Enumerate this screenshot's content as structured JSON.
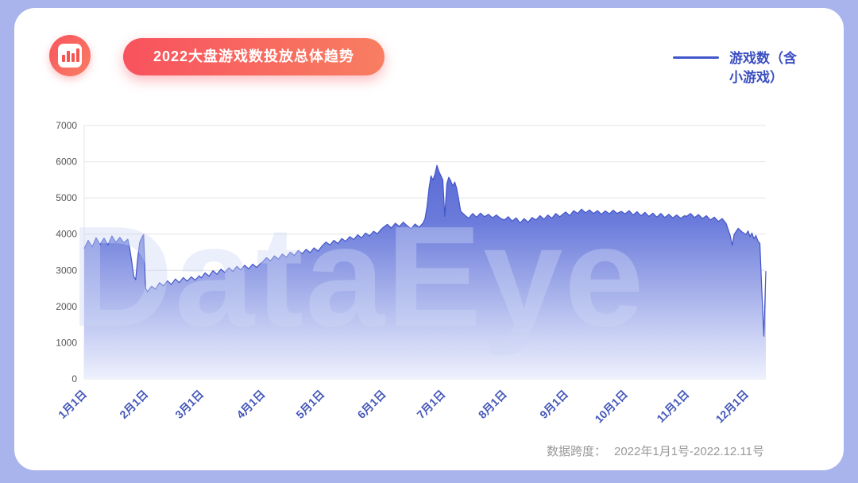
{
  "header": {
    "title": "2022大盘游戏数投放总体趋势",
    "icon": "bar-chart-icon"
  },
  "legend": {
    "label": "游戏数（含小游戏）"
  },
  "footer": {
    "prefix": "数据跨度：",
    "value": "2022年1月1号-2022.12.11号"
  },
  "watermark": "DataEye",
  "colors": {
    "background": "#a9b3ec",
    "card": "#ffffff",
    "accent_red_start": "#f8525e",
    "accent_red_end": "#f87e61",
    "series_line": "#4356c9",
    "series_fill_top": "#4f61d0",
    "series_fill_bottom": "#eef1fd",
    "x_label": "#4356b8",
    "y_label": "#555555",
    "gridline": "#e4e4e4",
    "footer_text": "#999999",
    "legend_text": "#3a4ec0"
  },
  "chart_data": {
    "type": "area",
    "title": "2022大盘游戏数投放总体趋势",
    "xlabel": "",
    "ylabel": "",
    "ylim": [
      0,
      7000
    ],
    "y_ticks": [
      0,
      1000,
      2000,
      3000,
      4000,
      5000,
      6000,
      7000
    ],
    "grid": "horizontal",
    "legend_position": "top-right",
    "date_span": "2022年1月1号-2022.12.11号",
    "x_range_days": [
      0,
      344
    ],
    "x_ticks": [
      {
        "label": "1月1日",
        "day": 0
      },
      {
        "label": "2月1日",
        "day": 31
      },
      {
        "label": "3月1日",
        "day": 59
      },
      {
        "label": "4月1日",
        "day": 90
      },
      {
        "label": "5月1日",
        "day": 120
      },
      {
        "label": "6月1日",
        "day": 151
      },
      {
        "label": "7月1日",
        "day": 181
      },
      {
        "label": "8月1日",
        "day": 212
      },
      {
        "label": "9月1日",
        "day": 243
      },
      {
        "label": "10月1日",
        "day": 273
      },
      {
        "label": "11月1日",
        "day": 304
      },
      {
        "label": "12月1日",
        "day": 334
      }
    ],
    "series": [
      {
        "name": "游戏数（含小游戏）",
        "x_unit": "day_of_2022",
        "points": [
          [
            0,
            3600
          ],
          [
            2,
            3830
          ],
          [
            4,
            3650
          ],
          [
            6,
            3900
          ],
          [
            8,
            3710
          ],
          [
            10,
            3890
          ],
          [
            12,
            3700
          ],
          [
            14,
            3950
          ],
          [
            16,
            3770
          ],
          [
            18,
            3910
          ],
          [
            20,
            3760
          ],
          [
            22,
            3860
          ],
          [
            23,
            3590
          ],
          [
            24,
            3230
          ],
          [
            25,
            2830
          ],
          [
            26,
            2740
          ],
          [
            27,
            3330
          ],
          [
            28,
            3770
          ],
          [
            29,
            3900
          ],
          [
            30,
            3990
          ],
          [
            31,
            2500
          ],
          [
            32,
            2410
          ],
          [
            34,
            2560
          ],
          [
            36,
            2480
          ],
          [
            38,
            2660
          ],
          [
            40,
            2570
          ],
          [
            42,
            2710
          ],
          [
            44,
            2610
          ],
          [
            46,
            2760
          ],
          [
            48,
            2660
          ],
          [
            50,
            2800
          ],
          [
            52,
            2700
          ],
          [
            54,
            2820
          ],
          [
            56,
            2730
          ],
          [
            58,
            2850
          ],
          [
            59,
            2790
          ],
          [
            61,
            2930
          ],
          [
            63,
            2840
          ],
          [
            65,
            2990
          ],
          [
            67,
            2890
          ],
          [
            69,
            3030
          ],
          [
            71,
            2940
          ],
          [
            73,
            3070
          ],
          [
            75,
            2970
          ],
          [
            77,
            3110
          ],
          [
            79,
            3010
          ],
          [
            81,
            3140
          ],
          [
            83,
            3040
          ],
          [
            85,
            3170
          ],
          [
            87,
            3080
          ],
          [
            89,
            3190
          ],
          [
            90,
            3230
          ],
          [
            92,
            3350
          ],
          [
            94,
            3260
          ],
          [
            96,
            3400
          ],
          [
            98,
            3310
          ],
          [
            100,
            3450
          ],
          [
            102,
            3360
          ],
          [
            104,
            3500
          ],
          [
            106,
            3410
          ],
          [
            108,
            3550
          ],
          [
            110,
            3460
          ],
          [
            112,
            3580
          ],
          [
            114,
            3490
          ],
          [
            116,
            3620
          ],
          [
            118,
            3530
          ],
          [
            120,
            3670
          ],
          [
            122,
            3780
          ],
          [
            124,
            3700
          ],
          [
            126,
            3830
          ],
          [
            128,
            3740
          ],
          [
            130,
            3880
          ],
          [
            132,
            3800
          ],
          [
            134,
            3930
          ],
          [
            136,
            3850
          ],
          [
            138,
            3980
          ],
          [
            140,
            3900
          ],
          [
            142,
            4030
          ],
          [
            144,
            3950
          ],
          [
            146,
            4080
          ],
          [
            148,
            4010
          ],
          [
            150,
            4140
          ],
          [
            151,
            4190
          ],
          [
            153,
            4270
          ],
          [
            155,
            4170
          ],
          [
            157,
            4300
          ],
          [
            159,
            4210
          ],
          [
            161,
            4330
          ],
          [
            163,
            4230
          ],
          [
            165,
            4150
          ],
          [
            167,
            4280
          ],
          [
            169,
            4190
          ],
          [
            171,
            4310
          ],
          [
            172,
            4430
          ],
          [
            173,
            4760
          ],
          [
            174,
            5260
          ],
          [
            175,
            5610
          ],
          [
            176,
            5490
          ],
          [
            177,
            5660
          ],
          [
            178,
            5900
          ],
          [
            179,
            5730
          ],
          [
            180,
            5610
          ],
          [
            181,
            5500
          ],
          [
            182,
            4490
          ],
          [
            183,
            5390
          ],
          [
            184,
            5570
          ],
          [
            185,
            5470
          ],
          [
            186,
            5330
          ],
          [
            187,
            5440
          ],
          [
            188,
            5260
          ],
          [
            189,
            4960
          ],
          [
            190,
            4630
          ],
          [
            192,
            4530
          ],
          [
            194,
            4440
          ],
          [
            196,
            4570
          ],
          [
            198,
            4470
          ],
          [
            200,
            4580
          ],
          [
            202,
            4480
          ],
          [
            204,
            4550
          ],
          [
            206,
            4450
          ],
          [
            208,
            4530
          ],
          [
            210,
            4440
          ],
          [
            212,
            4390
          ],
          [
            214,
            4480
          ],
          [
            216,
            4360
          ],
          [
            218,
            4450
          ],
          [
            220,
            4310
          ],
          [
            222,
            4430
          ],
          [
            224,
            4330
          ],
          [
            226,
            4460
          ],
          [
            228,
            4390
          ],
          [
            230,
            4510
          ],
          [
            232,
            4410
          ],
          [
            234,
            4530
          ],
          [
            236,
            4440
          ],
          [
            238,
            4570
          ],
          [
            240,
            4480
          ],
          [
            242,
            4570
          ],
          [
            243,
            4610
          ],
          [
            245,
            4510
          ],
          [
            247,
            4650
          ],
          [
            249,
            4570
          ],
          [
            251,
            4690
          ],
          [
            253,
            4590
          ],
          [
            255,
            4670
          ],
          [
            257,
            4570
          ],
          [
            259,
            4650
          ],
          [
            261,
            4550
          ],
          [
            263,
            4640
          ],
          [
            265,
            4560
          ],
          [
            267,
            4660
          ],
          [
            269,
            4570
          ],
          [
            271,
            4630
          ],
          [
            273,
            4560
          ],
          [
            275,
            4650
          ],
          [
            277,
            4530
          ],
          [
            279,
            4620
          ],
          [
            281,
            4510
          ],
          [
            283,
            4600
          ],
          [
            285,
            4490
          ],
          [
            287,
            4580
          ],
          [
            289,
            4470
          ],
          [
            291,
            4570
          ],
          [
            293,
            4460
          ],
          [
            295,
            4550
          ],
          [
            297,
            4450
          ],
          [
            299,
            4530
          ],
          [
            301,
            4440
          ],
          [
            303,
            4510
          ],
          [
            304,
            4490
          ],
          [
            306,
            4570
          ],
          [
            308,
            4460
          ],
          [
            310,
            4540
          ],
          [
            312,
            4430
          ],
          [
            314,
            4510
          ],
          [
            316,
            4390
          ],
          [
            318,
            4470
          ],
          [
            320,
            4350
          ],
          [
            322,
            4430
          ],
          [
            324,
            4290
          ],
          [
            326,
            3960
          ],
          [
            327,
            3690
          ],
          [
            328,
            3990
          ],
          [
            330,
            4160
          ],
          [
            332,
            4060
          ],
          [
            334,
            3990
          ],
          [
            335,
            4090
          ],
          [
            336,
            3930
          ],
          [
            337,
            4030
          ],
          [
            338,
            3870
          ],
          [
            339,
            3960
          ],
          [
            340,
            3810
          ],
          [
            341,
            3740
          ],
          [
            342,
            2400
          ],
          [
            343,
            1180
          ],
          [
            344,
            2980
          ]
        ]
      }
    ]
  }
}
